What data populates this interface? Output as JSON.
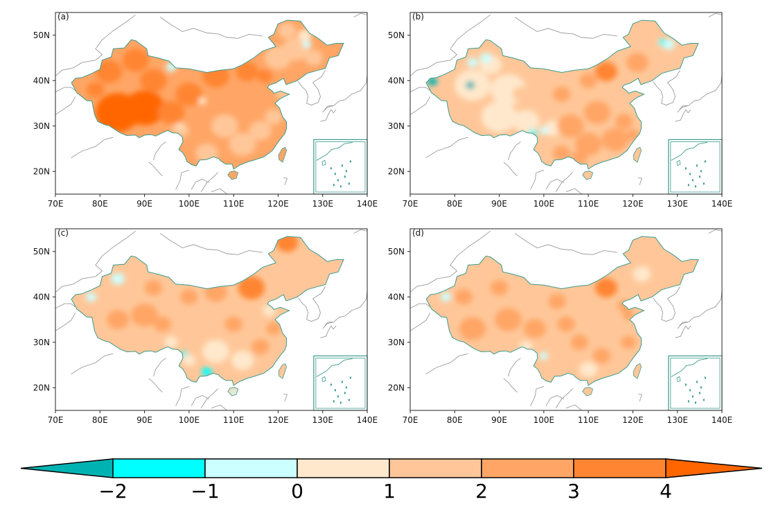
{
  "panels": [
    {
      "id": "a",
      "label": "(a)",
      "inset": true
    },
    {
      "id": "b",
      "label": "(b)",
      "inset": true
    },
    {
      "id": "c",
      "label": "(c)",
      "inset": true
    },
    {
      "id": "d",
      "label": "(d)",
      "inset": true
    }
  ],
  "axes": {
    "lon_ticks": [
      "70E",
      "80E",
      "90E",
      "100E",
      "110E",
      "120E",
      "130E",
      "140E"
    ],
    "lat_ticks": [
      "50N",
      "40N",
      "30N",
      "20N"
    ],
    "lon_range": [
      70,
      140
    ],
    "lat_range": [
      15,
      55
    ]
  },
  "colorbar": {
    "labels": [
      "−2",
      "−1",
      "0",
      "1",
      "2",
      "3",
      "4"
    ],
    "colors": [
      "#00b3b3",
      "#00ffff",
      "#ccffff",
      "#ffe8cc",
      "#ffc799",
      "#ffa666",
      "#ff8533",
      "#ff6600"
    ],
    "extend": "both"
  },
  "colors": {
    "land_base": "#ffc799",
    "coast": "#3a9a8e",
    "neighbor_border": "#9a9a9a"
  }
}
